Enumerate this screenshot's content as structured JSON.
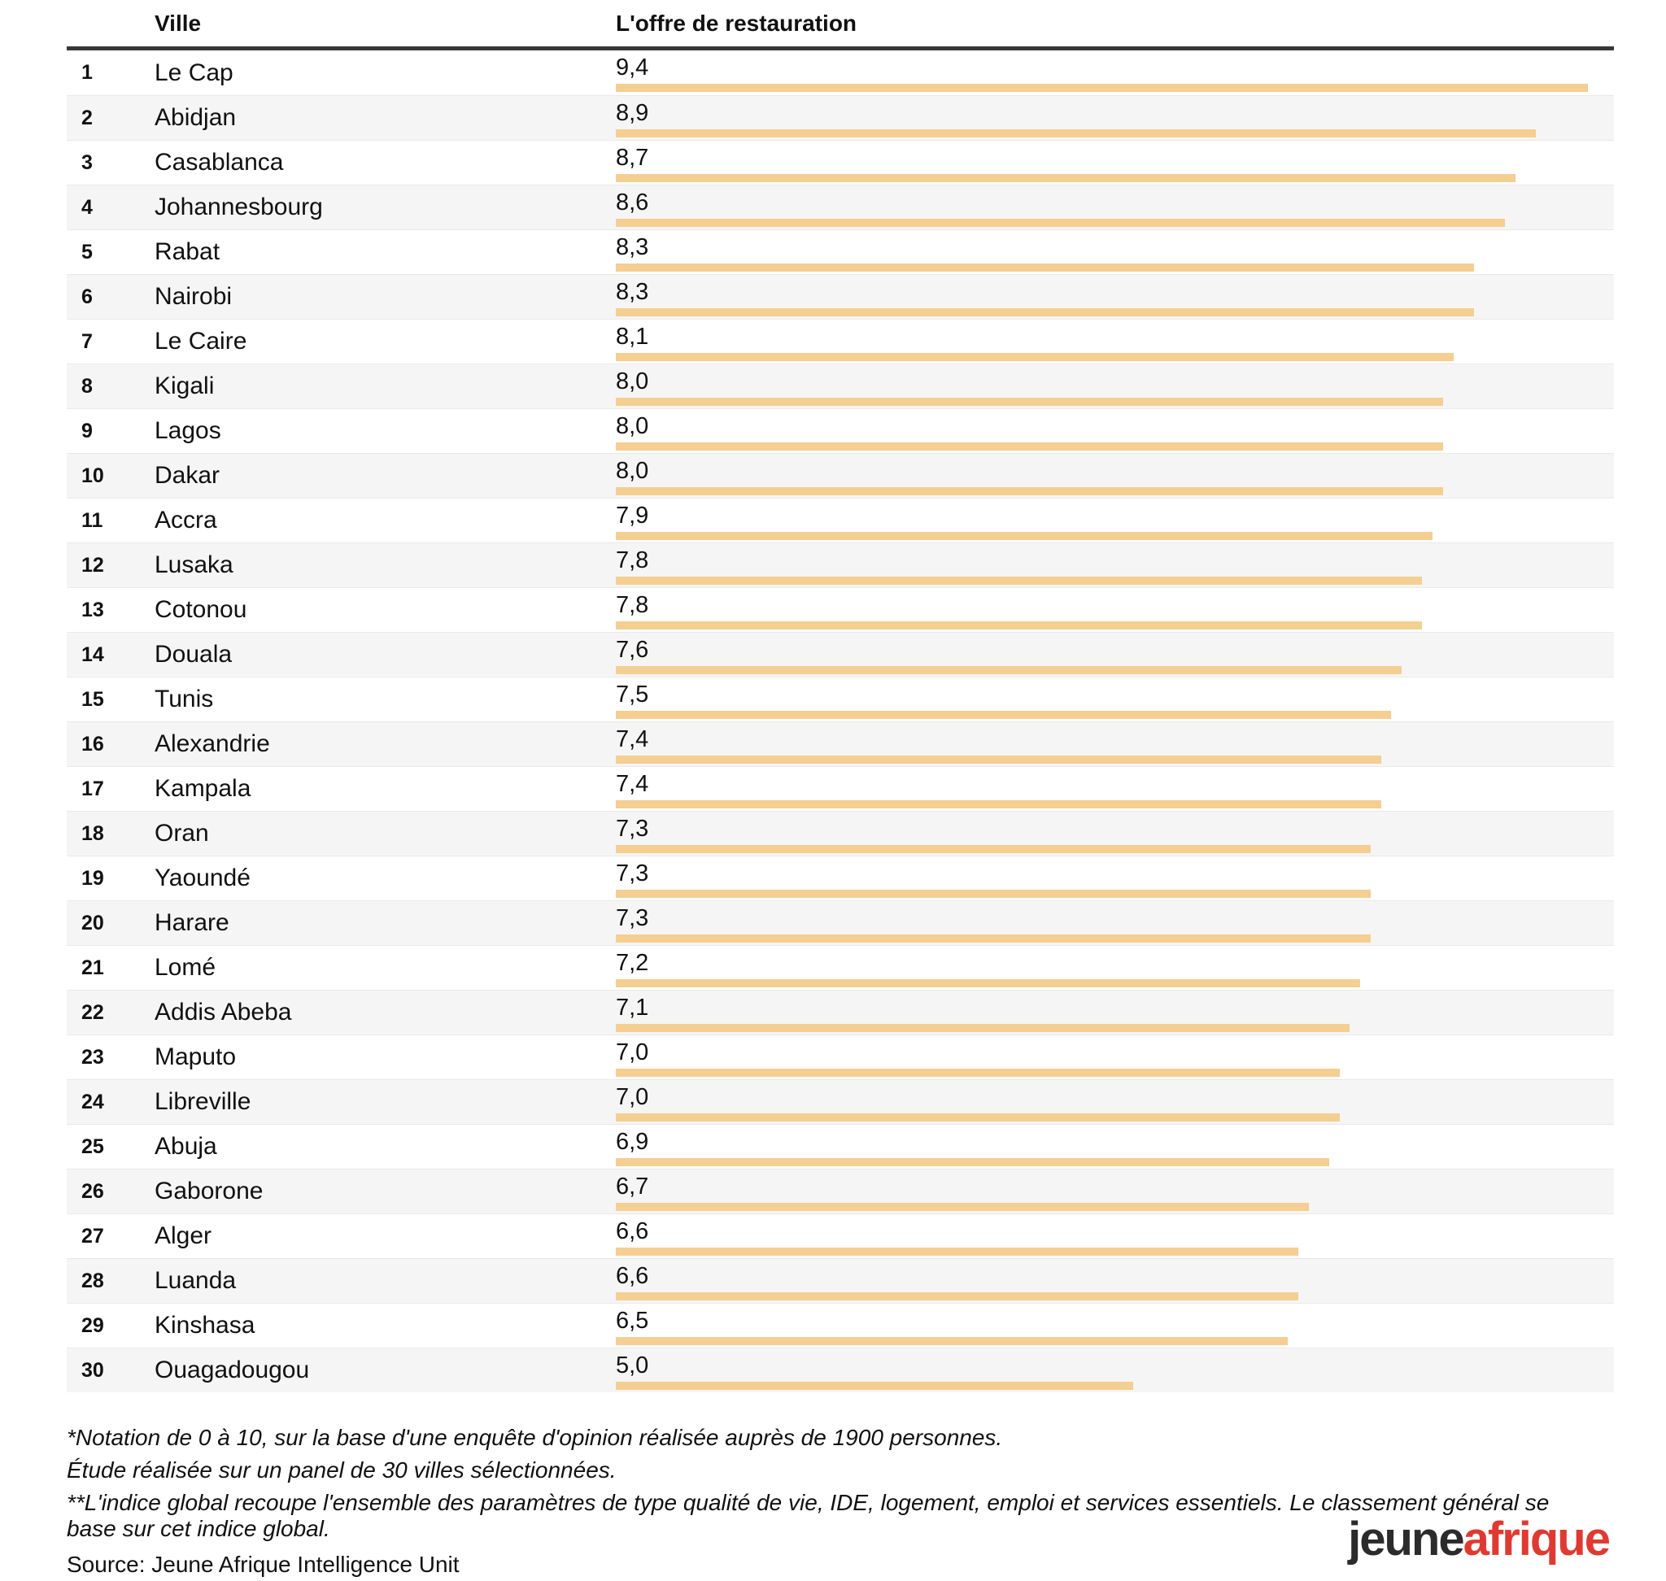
{
  "chart_data": {
    "type": "bar",
    "orientation": "horizontal",
    "title": "",
    "category_label": "Ville",
    "series_label": "L'offre de restauration",
    "ranks": [
      1,
      2,
      3,
      4,
      5,
      6,
      7,
      8,
      9,
      10,
      11,
      12,
      13,
      14,
      15,
      16,
      17,
      18,
      19,
      20,
      21,
      22,
      23,
      24,
      25,
      26,
      27,
      28,
      29,
      30
    ],
    "categories": [
      "Le Cap",
      "Abidjan",
      "Casablanca",
      "Johannesbourg",
      "Rabat",
      "Nairobi",
      "Le Caire",
      "Kigali",
      "Lagos",
      "Dakar",
      "Accra",
      "Lusaka",
      "Cotonou",
      "Douala",
      "Tunis",
      "Alexandrie",
      "Kampala",
      "Oran",
      "Yaoundé",
      "Harare",
      "Lomé",
      "Addis Abeba",
      "Maputo",
      "Libreville",
      "Abuja",
      "Gaborone",
      "Alger",
      "Luanda",
      "Kinshasa",
      "Ouagadougou"
    ],
    "values": [
      9.4,
      8.9,
      8.7,
      8.6,
      8.3,
      8.3,
      8.1,
      8.0,
      8.0,
      8.0,
      7.9,
      7.8,
      7.8,
      7.6,
      7.5,
      7.4,
      7.4,
      7.3,
      7.3,
      7.3,
      7.2,
      7.1,
      7.0,
      7.0,
      6.9,
      6.7,
      6.6,
      6.6,
      6.5,
      5.0
    ],
    "value_labels": [
      "9,4",
      "8,9",
      "8,7",
      "8,6",
      "8,3",
      "8,3",
      "8,1",
      "8,0",
      "8,0",
      "8,0",
      "7,9",
      "7,8",
      "7,8",
      "7,6",
      "7,5",
      "7,4",
      "7,4",
      "7,3",
      "7,3",
      "7,3",
      "7,2",
      "7,1",
      "7,0",
      "7,0",
      "6,9",
      "6,7",
      "6,6",
      "6,6",
      "6,5",
      "5,0"
    ],
    "xlim": [
      0,
      10
    ],
    "grid": false,
    "legend": "none",
    "bar_color": "#f5ce92"
  },
  "footnotes": {
    "note1": "*Notation de 0 à 10, sur la base d'une enquête d'opinion réalisée auprès de 1900 personnes.",
    "note2": "Étude réalisée sur un panel de 30 villes sélectionnées.",
    "note3": "**L'indice global recoupe l'ensemble des paramètres de type qualité de vie, IDE, logement, emploi et services essentiels. Le classement général se base sur cet indice global."
  },
  "source": "Source: Jeune Afrique Intelligence Unit",
  "logo": {
    "part1": "jeune",
    "part2": "afrique",
    "part1_color": "#2b2b2b",
    "part2_color": "#df3a32"
  },
  "colors": {
    "bar": "#f5ce92",
    "row_alt": "#f5f5f5",
    "rule": "#383838",
    "text": "#111111",
    "divider": "#e9e9e9"
  }
}
